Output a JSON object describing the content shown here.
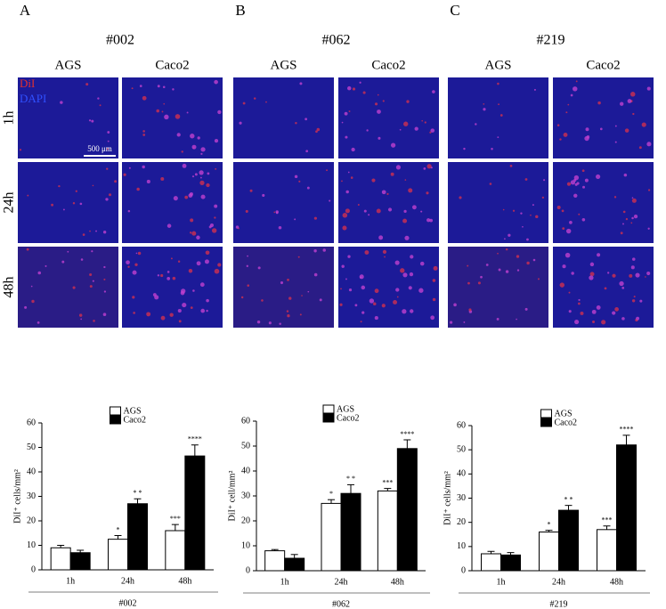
{
  "panels": [
    {
      "letter": "A",
      "title": "#002",
      "columns": [
        "AGS",
        "Caco2"
      ]
    },
    {
      "letter": "B",
      "title": "#062",
      "columns": [
        "AGS",
        "Caco2"
      ]
    },
    {
      "letter": "C",
      "title": "#219",
      "columns": [
        "AGS",
        "Caco2"
      ]
    }
  ],
  "rows": [
    "1h",
    "24h",
    "48h"
  ],
  "stain_labels": [
    "DiI",
    "DAPI"
  ],
  "scale_bar": "500 μm",
  "chart_data": [
    {
      "type": "bar",
      "ylabel": "DiI⁺ cells/mm²",
      "xlabel": "#002",
      "categories": [
        "1h",
        "24h",
        "48h"
      ],
      "series": [
        {
          "name": "AGS",
          "color": "#ffffff",
          "values": [
            9,
            12.5,
            16
          ],
          "errors": [
            1,
            1.5,
            2.5
          ],
          "annotations": [
            null,
            "*",
            "***"
          ]
        },
        {
          "name": "Caco2",
          "color": "#000000",
          "values": [
            7,
            27,
            46.5
          ],
          "errors": [
            1,
            2,
            4.5
          ],
          "annotations": [
            null,
            "* *",
            "****"
          ]
        }
      ],
      "ylim": [
        0,
        60
      ],
      "yticks": [
        0,
        10,
        20,
        30,
        40,
        50,
        60
      ],
      "legend": "top"
    },
    {
      "type": "bar",
      "ylabel": "DiI⁺ cell/mm²",
      "xlabel": "#062",
      "categories": [
        "1h",
        "24h",
        "48h"
      ],
      "series": [
        {
          "name": "AGS",
          "color": "#ffffff",
          "values": [
            8,
            27,
            32
          ],
          "errors": [
            0.5,
            1.5,
            1
          ],
          "annotations": [
            null,
            "*",
            "***"
          ]
        },
        {
          "name": "Caco2",
          "color": "#000000",
          "values": [
            5,
            31,
            49
          ],
          "errors": [
            1.5,
            3.5,
            3.5
          ],
          "annotations": [
            null,
            "* *",
            "****"
          ]
        }
      ],
      "ylim": [
        0,
        60
      ],
      "yticks": [
        0,
        10,
        20,
        30,
        40,
        50,
        60
      ],
      "legend": "top"
    },
    {
      "type": "bar",
      "ylabel": "DiI⁺ cells/mm²",
      "xlabel": "#219",
      "categories": [
        "1h",
        "24h",
        "48h"
      ],
      "series": [
        {
          "name": "AGS",
          "color": "#ffffff",
          "values": [
            7,
            16,
            17
          ],
          "errors": [
            1,
            0.7,
            1.5
          ],
          "annotations": [
            null,
            "*",
            "***"
          ]
        },
        {
          "name": "Caco2",
          "color": "#000000",
          "values": [
            6.5,
            25,
            52
          ],
          "errors": [
            1,
            2,
            4
          ],
          "annotations": [
            null,
            "* *",
            "****"
          ]
        }
      ],
      "ylim": [
        0,
        60
      ],
      "yticks": [
        0,
        10,
        20,
        30,
        40,
        50,
        60
      ],
      "legend": "top"
    }
  ]
}
